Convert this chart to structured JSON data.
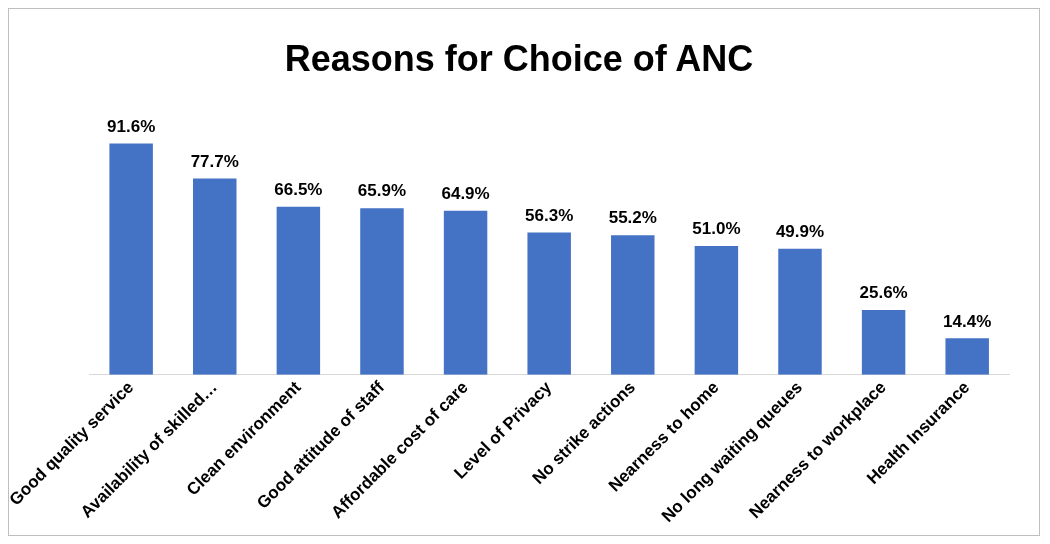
{
  "chart_data": {
    "type": "bar",
    "title": "Reasons for Choice of ANC",
    "categories": [
      "Good quality service",
      "Availability of skilled…",
      "Clean environment",
      "Good attitude of staff",
      "Affordable cost of care",
      "Level of Privacy",
      "No strike actions",
      "Nearness to home",
      "No long waiting queues",
      "Nearness to workplace",
      "Health Insurance"
    ],
    "values": [
      91.6,
      77.7,
      66.5,
      65.9,
      64.9,
      56.3,
      55.2,
      51.0,
      49.9,
      25.6,
      14.4
    ],
    "value_labels": [
      "91.6%",
      "77.7%",
      "66.5%",
      "65.9%",
      "64.9%",
      "56.3%",
      "55.2%",
      "51.0%",
      "49.9%",
      "25.6%",
      "14.4%"
    ],
    "color": "#4472c4",
    "legend": false,
    "grid": false
  }
}
